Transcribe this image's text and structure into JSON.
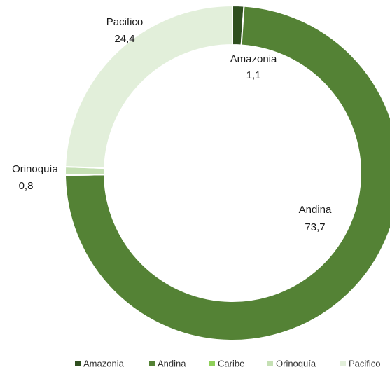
{
  "chart_data": {
    "type": "donut",
    "categories": [
      "Amazonia",
      "Andina",
      "Caribe",
      "Orinoquía",
      "Pacifico"
    ],
    "values": [
      1.1,
      73.7,
      0,
      0.8,
      24.4
    ],
    "value_labels": [
      "1,1",
      "73,7",
      null,
      "0,8",
      "24,4"
    ],
    "colors": [
      "#2f4f1f",
      "#548235",
      "#8fd05a",
      "#c5e0b4",
      "#e2efda"
    ],
    "legend": "bottom"
  }
}
